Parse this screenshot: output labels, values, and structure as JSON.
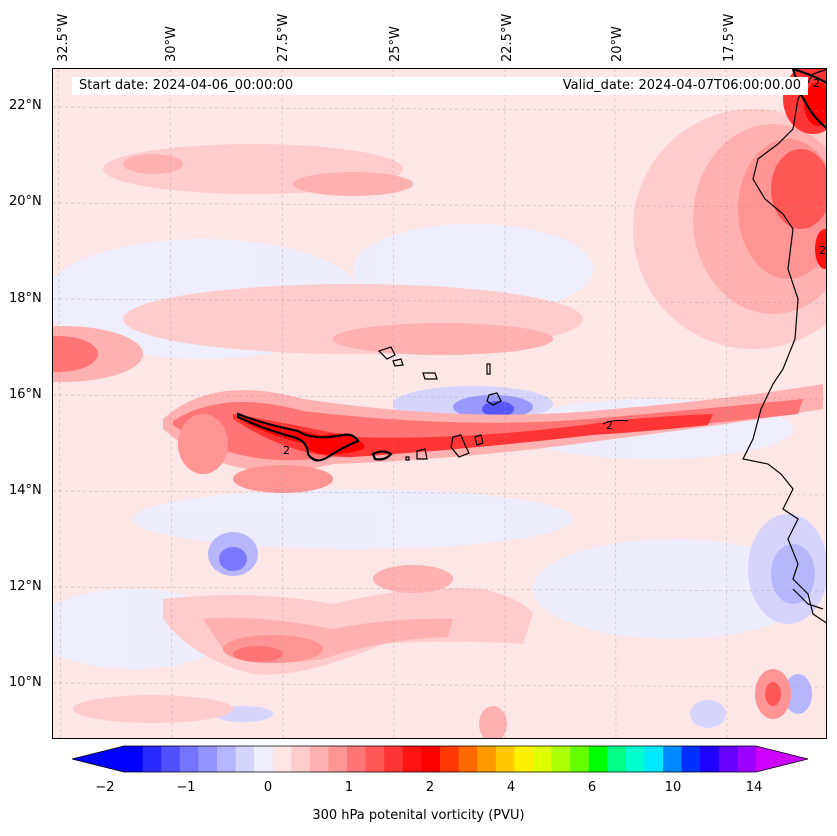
{
  "header": {
    "start_date": "Start date: 2024-04-06_00:00:00",
    "valid_date": "Valid_date: 2024-04-07T06:00:00.00"
  },
  "longitude_labels": [
    "32.5°W",
    "30°W",
    "27.5°W",
    "25°W",
    "22.5°W",
    "20°W",
    "17.5°W"
  ],
  "latitude_labels": [
    "22°N",
    "20°N",
    "18°N",
    "16°N",
    "14°N",
    "12°N",
    "10°N"
  ],
  "contour_label": "2",
  "colorbar": {
    "ticks": [
      "−2",
      "−1",
      "0",
      "1",
      "2",
      "4",
      "6",
      "10",
      "14"
    ],
    "label": "300 hPa potenital vorticity (PVU)",
    "colors": [
      "#0000ff",
      "#2a2aff",
      "#5050ff",
      "#7474ff",
      "#9494ff",
      "#b4b4ff",
      "#d4d4ff",
      "#eeeeff",
      "#ffe4e4",
      "#ffcccc",
      "#ffb0b0",
      "#ff9494",
      "#ff7474",
      "#ff5656",
      "#ff3434",
      "#ff1212",
      "#ff0000",
      "#ff3800",
      "#ff6a00",
      "#ff9a00",
      "#ffc800",
      "#fff000",
      "#ddff00",
      "#aaff00",
      "#66ff00",
      "#00ff00",
      "#00ff88",
      "#00ffcc",
      "#00e8ff",
      "#0088ff",
      "#0030ff",
      "#2000ff",
      "#6600ff",
      "#9a00ff"
    ],
    "under_color": "#0000ff",
    "over_color": "#cc00ff"
  }
}
